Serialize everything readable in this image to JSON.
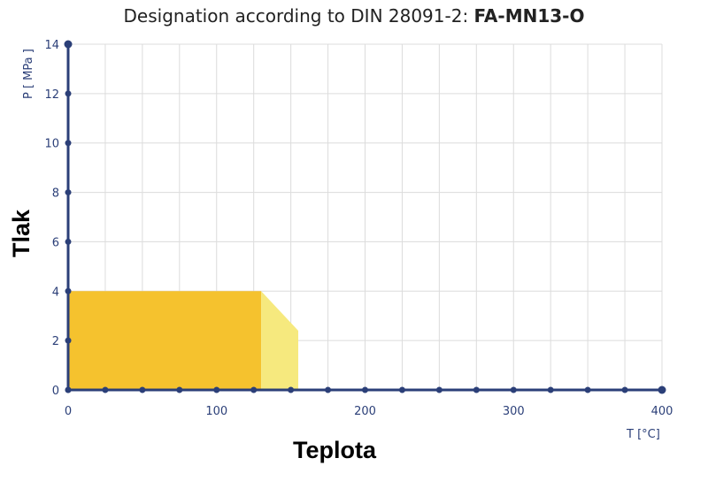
{
  "chart_data": {
    "type": "area",
    "title_prefix": "Designation according to DIN 28091-2: ",
    "title_bold": "FA-MN13-O",
    "x_unit": "T [°C]",
    "y_unit": "P [ MPa ]",
    "xlabel": "Teplota",
    "ylabel": "Tlak",
    "xlim": [
      0,
      400
    ],
    "ylim": [
      0,
      14
    ],
    "x_ticks": [
      0,
      100,
      200,
      300,
      400
    ],
    "y_ticks": [
      0,
      2,
      4,
      6,
      8,
      10,
      12,
      14
    ],
    "x_grid_step": 25,
    "y_grid_step": 2,
    "grid": true,
    "series": [
      {
        "color": "#f5c22e",
        "polygon": [
          [
            0,
            0
          ],
          [
            0,
            4
          ],
          [
            130,
            4
          ],
          [
            130,
            0
          ]
        ]
      },
      {
        "color": "#f6e97e",
        "polygon": [
          [
            130,
            0
          ],
          [
            130,
            4
          ],
          [
            155,
            2.4
          ],
          [
            155,
            0
          ]
        ]
      }
    ],
    "axis_color": "#2b3f78"
  }
}
